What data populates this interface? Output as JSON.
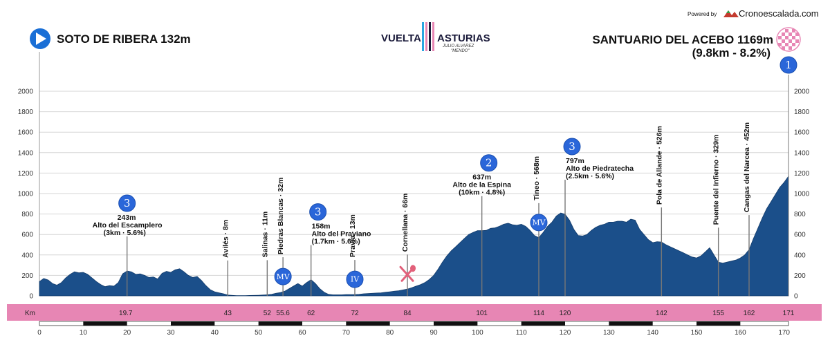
{
  "header": {
    "powered_by": "Powered by",
    "brand": "Cronoescalada.com",
    "start": "SOTO DE RIBERA 132m",
    "finish": "SANTUARIO DEL ACEBO 1169m",
    "finish_sub": "(9.8km - 8.2%)",
    "finish_badge": "1",
    "race_logo_left": "VUELTA",
    "race_logo_right": "ASTURIAS",
    "race_logo_sub1": "JULIO ALVAREZ",
    "race_logo_sub2": "\"MENDO\"",
    "colors": {
      "start_icon": "#1a6fd6",
      "profile": "#1b4f8a",
      "band": "#e786b4",
      "badge": "#2a66d9"
    }
  },
  "chart_data": {
    "type": "area",
    "xlabel": "",
    "ylabel": "",
    "xlim": [
      0,
      171
    ],
    "ylim": [
      0,
      2000
    ],
    "yticks": [
      0,
      200,
      400,
      600,
      800,
      1000,
      1200,
      1400,
      1600,
      1800,
      2000
    ],
    "xticks": [
      0,
      10,
      20,
      30,
      40,
      50,
      60,
      70,
      80,
      90,
      100,
      110,
      120,
      130,
      140,
      150,
      160,
      170
    ],
    "grid": true,
    "profile": [
      [
        0,
        140
      ],
      [
        1,
        170
      ],
      [
        2,
        155
      ],
      [
        3,
        120
      ],
      [
        4,
        105
      ],
      [
        5,
        130
      ],
      [
        6,
        175
      ],
      [
        7,
        210
      ],
      [
        8,
        235
      ],
      [
        9,
        225
      ],
      [
        10,
        230
      ],
      [
        11,
        210
      ],
      [
        12,
        175
      ],
      [
        13,
        140
      ],
      [
        14,
        110
      ],
      [
        15,
        90
      ],
      [
        16,
        100
      ],
      [
        17,
        95
      ],
      [
        18,
        130
      ],
      [
        19,
        215
      ],
      [
        20,
        243
      ],
      [
        21,
        235
      ],
      [
        22,
        210
      ],
      [
        23,
        215
      ],
      [
        24,
        200
      ],
      [
        25,
        180
      ],
      [
        26,
        185
      ],
      [
        27,
        165
      ],
      [
        28,
        220
      ],
      [
        29,
        240
      ],
      [
        30,
        230
      ],
      [
        31,
        255
      ],
      [
        32,
        265
      ],
      [
        33,
        235
      ],
      [
        34,
        200
      ],
      [
        35,
        180
      ],
      [
        36,
        190
      ],
      [
        37,
        150
      ],
      [
        38,
        100
      ],
      [
        39,
        60
      ],
      [
        40,
        40
      ],
      [
        41,
        30
      ],
      [
        42,
        20
      ],
      [
        43,
        8
      ],
      [
        44,
        5
      ],
      [
        45,
        2
      ],
      [
        46,
        2
      ],
      [
        47,
        3
      ],
      [
        48,
        4
      ],
      [
        49,
        5
      ],
      [
        50,
        6
      ],
      [
        51,
        8
      ],
      [
        52,
        11
      ],
      [
        53,
        15
      ],
      [
        54,
        25
      ],
      [
        55,
        32
      ],
      [
        56,
        45
      ],
      [
        57,
        70
      ],
      [
        58,
        95
      ],
      [
        59,
        120
      ],
      [
        60,
        95
      ],
      [
        61,
        130
      ],
      [
        62,
        158
      ],
      [
        63,
        120
      ],
      [
        64,
        70
      ],
      [
        65,
        35
      ],
      [
        66,
        15
      ],
      [
        67,
        10
      ],
      [
        68,
        10
      ],
      [
        69,
        10
      ],
      [
        70,
        12
      ],
      [
        71,
        13
      ],
      [
        72,
        13
      ],
      [
        73,
        15
      ],
      [
        74,
        20
      ],
      [
        75,
        22
      ],
      [
        76,
        25
      ],
      [
        77,
        28
      ],
      [
        78,
        30
      ],
      [
        79,
        35
      ],
      [
        80,
        40
      ],
      [
        81,
        45
      ],
      [
        82,
        50
      ],
      [
        83,
        58
      ],
      [
        84,
        66
      ],
      [
        85,
        80
      ],
      [
        86,
        95
      ],
      [
        87,
        110
      ],
      [
        88,
        130
      ],
      [
        89,
        160
      ],
      [
        90,
        200
      ],
      [
        91,
        260
      ],
      [
        92,
        330
      ],
      [
        93,
        390
      ],
      [
        94,
        440
      ],
      [
        95,
        480
      ],
      [
        96,
        520
      ],
      [
        97,
        560
      ],
      [
        98,
        600
      ],
      [
        99,
        620
      ],
      [
        100,
        637
      ],
      [
        101,
        637
      ],
      [
        102,
        640
      ],
      [
        103,
        660
      ],
      [
        104,
        665
      ],
      [
        105,
        680
      ],
      [
        106,
        700
      ],
      [
        107,
        710
      ],
      [
        108,
        695
      ],
      [
        109,
        690
      ],
      [
        110,
        700
      ],
      [
        111,
        680
      ],
      [
        112,
        640
      ],
      [
        113,
        590
      ],
      [
        114,
        568
      ],
      [
        115,
        620
      ],
      [
        116,
        680
      ],
      [
        117,
        720
      ],
      [
        118,
        780
      ],
      [
        119,
        810
      ],
      [
        120,
        797
      ],
      [
        121,
        740
      ],
      [
        122,
        650
      ],
      [
        123,
        590
      ],
      [
        124,
        585
      ],
      [
        125,
        600
      ],
      [
        126,
        640
      ],
      [
        127,
        670
      ],
      [
        128,
        690
      ],
      [
        129,
        700
      ],
      [
        130,
        720
      ],
      [
        131,
        720
      ],
      [
        132,
        730
      ],
      [
        133,
        730
      ],
      [
        134,
        720
      ],
      [
        135,
        750
      ],
      [
        136,
        740
      ],
      [
        137,
        650
      ],
      [
        138,
        600
      ],
      [
        139,
        550
      ],
      [
        140,
        520
      ],
      [
        141,
        530
      ],
      [
        142,
        526
      ],
      [
        143,
        500
      ],
      [
        144,
        480
      ],
      [
        145,
        460
      ],
      [
        146,
        440
      ],
      [
        147,
        420
      ],
      [
        148,
        400
      ],
      [
        149,
        380
      ],
      [
        150,
        370
      ],
      [
        151,
        390
      ],
      [
        152,
        430
      ],
      [
        153,
        470
      ],
      [
        154,
        400
      ],
      [
        155,
        329
      ],
      [
        156,
        320
      ],
      [
        157,
        330
      ],
      [
        158,
        340
      ],
      [
        159,
        350
      ],
      [
        160,
        370
      ],
      [
        161,
        400
      ],
      [
        162,
        452
      ],
      [
        163,
        560
      ],
      [
        164,
        660
      ],
      [
        165,
        760
      ],
      [
        166,
        850
      ],
      [
        167,
        920
      ],
      [
        168,
        990
      ],
      [
        169,
        1060
      ],
      [
        170,
        1110
      ],
      [
        171,
        1169
      ]
    ],
    "markers": [
      {
        "km": 20,
        "label1": "243m",
        "label2": "Alto del Escamplero",
        "label3": "(3km · 5.6%)",
        "badge": "3",
        "badge_shape": "circle"
      },
      {
        "km": 43,
        "vertical": "Avilés · 8m"
      },
      {
        "km": 52,
        "vertical": "Salinas · 11m"
      },
      {
        "km": 55.6,
        "vertical": "Piedras Blancas · 32m",
        "badge": "MV",
        "badge_shape": "circle"
      },
      {
        "km": 62,
        "label1": "158m",
        "label2": "Alto del Praviano",
        "label3": "(1.7km · 5.6%)",
        "badge": "3",
        "badge_shape": "circle"
      },
      {
        "km": 72,
        "vertical": "Pravia · 13m",
        "badge": "IV",
        "badge_shape": "circle"
      },
      {
        "km": 84,
        "vertical": "Cornellana · 66m",
        "badge": "feed",
        "badge_shape": "feed"
      },
      {
        "km": 101,
        "label1": "637m",
        "label2": "Alto de la Espina",
        "label3": "(10km · 4.8%)",
        "badge": "2",
        "badge_shape": "circle"
      },
      {
        "km": 114,
        "vertical": "Tineo · 568m",
        "badge": "MV",
        "badge_shape": "circle"
      },
      {
        "km": 120,
        "label1": "797m",
        "label2": "Alto de Piedratecha",
        "label3": "(2.5km · 5.6%)",
        "badge": "3",
        "badge_shape": "circle"
      },
      {
        "km": 142,
        "vertical": "Pola de Allande · 526m"
      },
      {
        "km": 155,
        "vertical": "Puente del Infierno · 329m"
      },
      {
        "km": 162,
        "vertical": "Cangas del Narcea · 452m"
      }
    ],
    "km_band": {
      "label": "Km",
      "values": [
        "19.7",
        "43",
        "52",
        "55.6",
        "62",
        "72",
        "84",
        "101",
        "114",
        "120",
        "142",
        "155",
        "162",
        "171"
      ]
    }
  }
}
